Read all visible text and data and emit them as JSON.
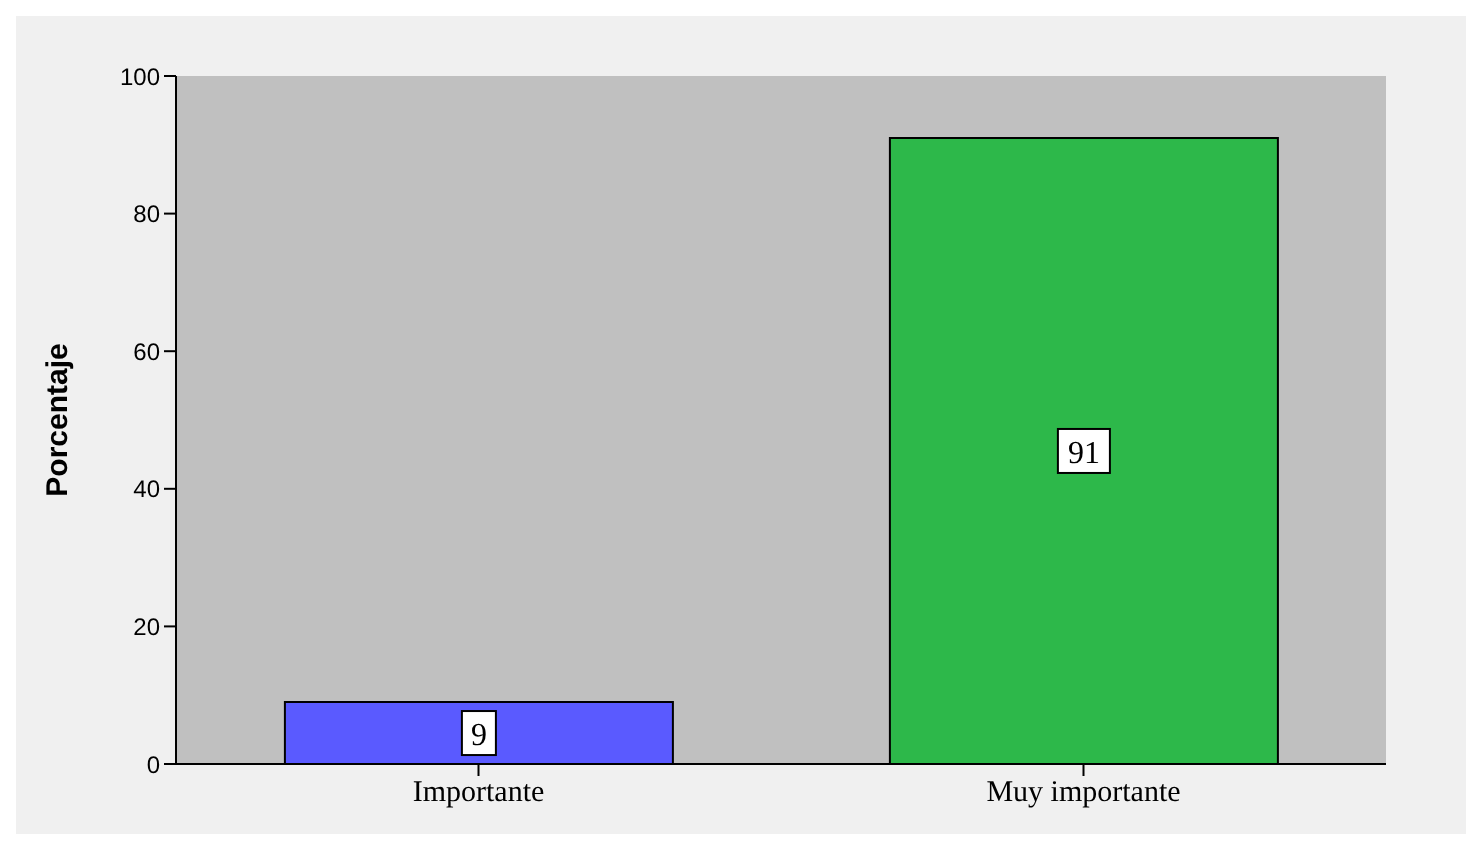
{
  "chart_data": {
    "type": "bar",
    "ylabel": "Porcentaje",
    "categories": [
      "Importante",
      "Muy importante"
    ],
    "values": [
      9,
      91
    ],
    "colors": [
      "#5a5aff",
      "#2db84a"
    ],
    "ylim": [
      0,
      100
    ],
    "yticks": [
      0,
      20,
      40,
      60,
      80,
      100
    ],
    "data_labels": true,
    "grid": false,
    "legend": false
  }
}
